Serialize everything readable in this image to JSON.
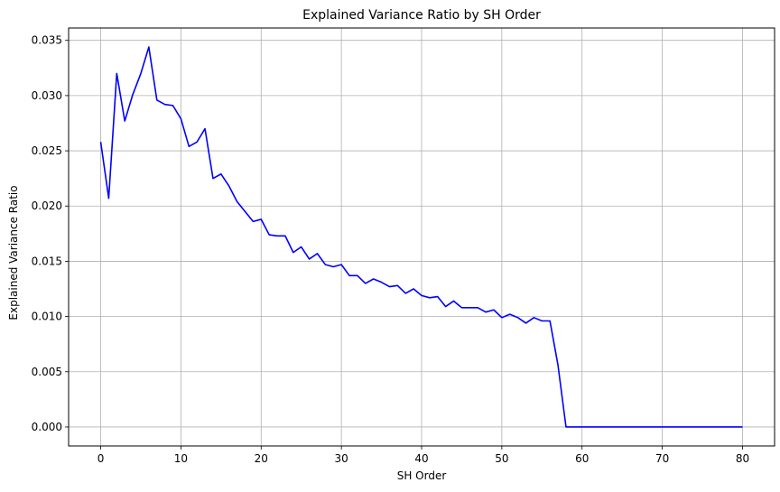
{
  "chart_data": {
    "type": "line",
    "title": "Explained Variance Ratio by SH Order",
    "xlabel": "SH Order",
    "ylabel": "Explained Variance Ratio",
    "xlim": [
      -4,
      84
    ],
    "ylim": [
      -0.00172,
      0.03612
    ],
    "xticks": [
      0,
      10,
      20,
      30,
      40,
      50,
      60,
      70,
      80
    ],
    "yticks": [
      0.0,
      0.005,
      0.01,
      0.015,
      0.02,
      0.025,
      0.03,
      0.035
    ],
    "ytick_labels": [
      "0.000",
      "0.005",
      "0.010",
      "0.015",
      "0.020",
      "0.025",
      "0.030",
      "0.035"
    ],
    "grid": true,
    "series": [
      {
        "color": "#0000ff",
        "x": [
          0,
          1,
          2,
          3,
          4,
          5,
          6,
          7,
          8,
          9,
          10,
          11,
          12,
          13,
          14,
          15,
          16,
          17,
          18,
          19,
          20,
          21,
          22,
          23,
          24,
          25,
          26,
          27,
          28,
          29,
          30,
          31,
          32,
          33,
          34,
          35,
          36,
          37,
          38,
          39,
          40,
          41,
          42,
          43,
          44,
          45,
          46,
          47,
          48,
          49,
          50,
          51,
          52,
          53,
          54,
          55,
          56,
          57,
          58,
          59,
          60,
          61,
          62,
          63,
          64,
          65,
          66,
          67,
          68,
          69,
          70,
          71,
          72,
          73,
          74,
          75,
          76,
          77,
          78,
          79,
          80
        ],
        "values": [
          0.0258,
          0.0207,
          0.032,
          0.0277,
          0.0301,
          0.032,
          0.0344,
          0.0296,
          0.0292,
          0.0291,
          0.0279,
          0.0254,
          0.0258,
          0.027,
          0.0225,
          0.0229,
          0.0218,
          0.0204,
          0.0195,
          0.0186,
          0.0188,
          0.0174,
          0.0173,
          0.0173,
          0.0158,
          0.0163,
          0.0152,
          0.0157,
          0.0147,
          0.0145,
          0.0147,
          0.0137,
          0.0137,
          0.013,
          0.0134,
          0.0131,
          0.0127,
          0.0128,
          0.0121,
          0.0125,
          0.0119,
          0.0117,
          0.0118,
          0.0109,
          0.0114,
          0.0108,
          0.0108,
          0.0108,
          0.0104,
          0.0106,
          0.0099,
          0.0102,
          0.0099,
          0.0094,
          0.0099,
          0.0096,
          0.0096,
          0.0056,
          0.0,
          0.0,
          0.0,
          0.0,
          0.0,
          0.0,
          0.0,
          0.0,
          0.0,
          0.0,
          0.0,
          0.0,
          0.0,
          0.0,
          0.0,
          0.0,
          0.0,
          0.0,
          0.0,
          0.0,
          0.0,
          0.0,
          0.0
        ]
      }
    ]
  }
}
